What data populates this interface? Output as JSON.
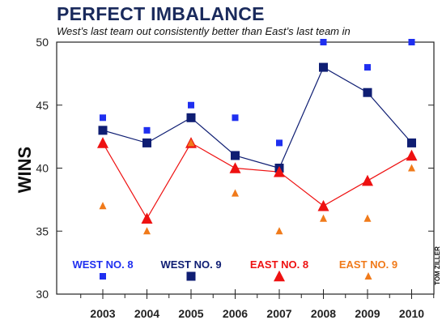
{
  "title": "PERFECT IMBALANCE",
  "subtitle": "West’s last team out consistently better than East’s last team in",
  "credit": "TOM ZILLER",
  "colors": {
    "west8": "#1f2ff0",
    "west9": "#0f1e73",
    "east8": "#ee1111",
    "east9": "#f07a1a",
    "title": "#1a2a5c"
  },
  "chart_data": {
    "type": "line",
    "title": "PERFECT IMBALANCE",
    "subtitle": "West’s last team out consistently better than East’s last team in",
    "xlabel": "",
    "ylabel": "WINS",
    "x": [
      "2003",
      "2004",
      "2005",
      "2006",
      "2007",
      "2008",
      "2009",
      "2010"
    ],
    "ylim": [
      30,
      50
    ],
    "yticks": [
      30,
      35,
      40,
      45,
      50
    ],
    "grid": false,
    "legend": "bottom",
    "series": [
      {
        "name": "WEST NO. 8",
        "marker": "square",
        "size": "small",
        "line": false,
        "color": "#1f2ff0",
        "values": [
          44,
          43,
          45,
          44,
          42,
          50,
          48,
          50
        ]
      },
      {
        "name": "WEST NO. 9",
        "marker": "square",
        "size": "large",
        "line": true,
        "color": "#0f1e73",
        "values": [
          43,
          42,
          44,
          41,
          40,
          48,
          46,
          42
        ]
      },
      {
        "name": "EAST NO. 8",
        "marker": "triangle",
        "size": "large",
        "line": true,
        "color": "#ee1111",
        "values": [
          42,
          36,
          42,
          40,
          39.7,
          37,
          39,
          41
        ]
      },
      {
        "name": "EAST NO. 9",
        "marker": "triangle",
        "size": "small",
        "line": false,
        "color": "#f07a1a",
        "values": [
          37,
          35,
          42,
          38,
          35,
          36,
          36,
          40
        ]
      }
    ]
  }
}
